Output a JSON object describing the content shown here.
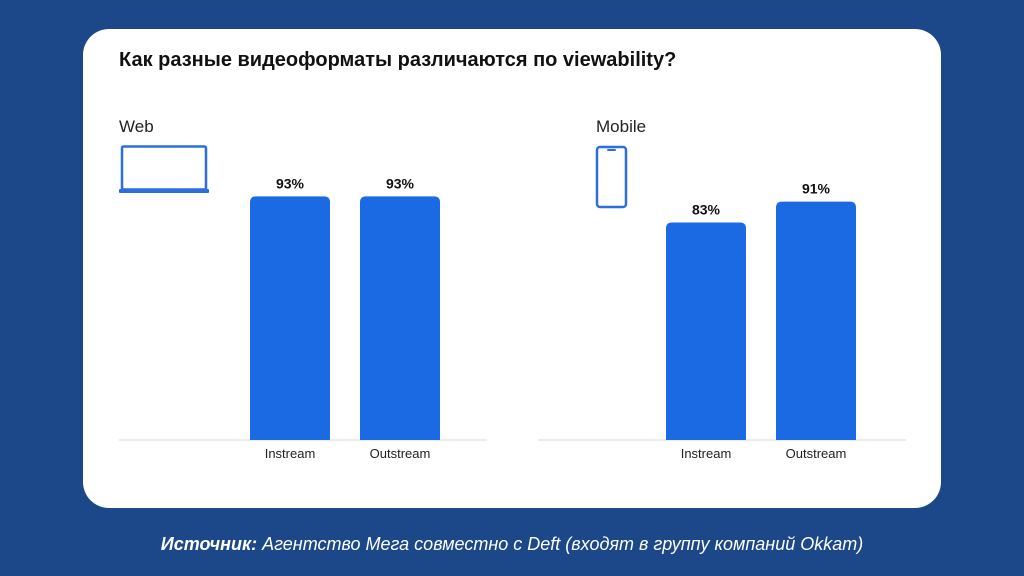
{
  "title": "Как разные видеоформаты различаются по viewability?",
  "source": {
    "label": "Источник:",
    "text": " Агентство Мега совместно с Deft (входят в группу компаний Okkam)"
  },
  "colors": {
    "background": "#1c4788",
    "bar": "#1b6ae4",
    "icon": "#2a6fdb",
    "baseline": "#d9d9d9"
  },
  "icons": {
    "web": "laptop-icon",
    "mobile": "phone-icon"
  },
  "chart_data": [
    {
      "type": "bar",
      "title": "Web",
      "categories": [
        "Instream",
        "Outstream"
      ],
      "values": [
        93,
        93
      ],
      "value_labels": [
        "93%",
        "93%"
      ],
      "ylim": [
        0,
        100
      ],
      "grid": false
    },
    {
      "type": "bar",
      "title": "Mobile",
      "categories": [
        "Instream",
        "Outstream"
      ],
      "values": [
        83,
        91
      ],
      "value_labels": [
        "83%",
        "91%"
      ],
      "ylim": [
        0,
        100
      ],
      "grid": false
    }
  ]
}
